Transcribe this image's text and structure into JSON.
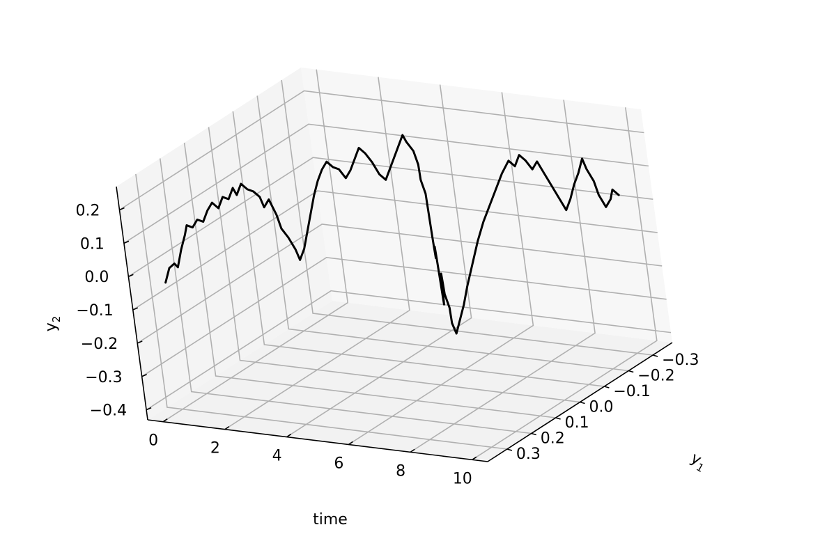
{
  "chart_data": {
    "type": "line",
    "projection": "3d",
    "xlabel": "time",
    "ylabel": "y1",
    "zlabel": "y2",
    "xlim": [
      -0.5,
      10.5
    ],
    "ylim": [
      -0.38,
      0.38
    ],
    "zlim": [
      -0.43,
      0.27
    ],
    "grid": true,
    "x_ticks": [
      "0",
      "2",
      "4",
      "6",
      "8",
      "10"
    ],
    "y_ticks": [
      "−0.3",
      "−0.2",
      "−0.1",
      "0.0",
      "0.1",
      "0.2",
      "0.3"
    ],
    "z_ticks": [
      "−0.4",
      "−0.3",
      "−0.2",
      "−0.1",
      "0.0",
      "0.1",
      "0.2"
    ],
    "x_tick_values": [
      0,
      2,
      4,
      6,
      8,
      10
    ],
    "y_tick_values": [
      -0.3,
      -0.2,
      -0.1,
      0.0,
      0.1,
      0.2,
      0.3
    ],
    "z_tick_values": [
      -0.4,
      -0.3,
      -0.2,
      -0.1,
      0.0,
      0.1,
      0.2
    ],
    "series": [
      {
        "color": "#000000",
        "points": [
          [
            0.0,
            0.3,
            -0.05
          ],
          [
            0.1,
            0.29,
            -0.01
          ],
          [
            0.2,
            0.28,
            0.0
          ],
          [
            0.3,
            0.28,
            -0.01
          ],
          [
            0.4,
            0.27,
            0.04
          ],
          [
            0.5,
            0.26,
            0.08
          ],
          [
            0.6,
            0.26,
            0.11
          ],
          [
            0.7,
            0.25,
            0.1
          ],
          [
            0.8,
            0.24,
            0.12
          ],
          [
            0.9,
            0.23,
            0.11
          ],
          [
            1.0,
            0.22,
            0.14
          ],
          [
            1.1,
            0.21,
            0.16
          ],
          [
            1.2,
            0.2,
            0.14
          ],
          [
            1.3,
            0.19,
            0.17
          ],
          [
            1.4,
            0.18,
            0.16
          ],
          [
            1.5,
            0.17,
            0.19
          ],
          [
            1.6,
            0.17,
            0.17
          ],
          [
            1.7,
            0.16,
            0.2
          ],
          [
            1.8,
            0.15,
            0.18
          ],
          [
            1.9,
            0.14,
            0.17
          ],
          [
            2.0,
            0.13,
            0.15
          ],
          [
            2.1,
            0.13,
            0.12
          ],
          [
            2.2,
            0.12,
            0.14
          ],
          [
            2.3,
            0.11,
            0.09
          ],
          [
            2.4,
            0.11,
            0.05
          ],
          [
            2.5,
            0.1,
            0.02
          ],
          [
            2.6,
            0.09,
            -0.02
          ],
          [
            2.7,
            0.09,
            -0.05
          ],
          [
            2.8,
            0.08,
            -0.02
          ],
          [
            2.9,
            0.07,
            0.03
          ],
          [
            3.0,
            0.06,
            0.08
          ],
          [
            3.1,
            0.05,
            0.13
          ],
          [
            3.2,
            0.04,
            0.17
          ],
          [
            3.3,
            0.03,
            0.2
          ],
          [
            3.4,
            0.02,
            0.22
          ],
          [
            3.5,
            0.01,
            0.2
          ],
          [
            3.6,
            0.0,
            0.19
          ],
          [
            3.7,
            -0.01,
            0.16
          ],
          [
            3.8,
            -0.02,
            0.18
          ],
          [
            3.9,
            -0.03,
            0.21
          ],
          [
            4.0,
            -0.04,
            0.24
          ],
          [
            4.1,
            -0.05,
            0.22
          ],
          [
            4.2,
            -0.06,
            0.19
          ],
          [
            4.3,
            -0.07,
            0.15
          ],
          [
            4.4,
            -0.08,
            0.13
          ],
          [
            4.5,
            -0.09,
            0.16
          ],
          [
            4.6,
            -0.1,
            0.19
          ],
          [
            4.7,
            -0.11,
            0.22
          ],
          [
            4.8,
            -0.12,
            0.25
          ],
          [
            4.9,
            -0.12,
            0.23
          ],
          [
            5.0,
            -0.13,
            0.2
          ],
          [
            5.1,
            -0.13,
            0.16
          ],
          [
            5.2,
            -0.12,
            0.12
          ],
          [
            5.3,
            -0.12,
            0.08
          ],
          [
            5.4,
            -0.11,
            0.03
          ],
          [
            5.5,
            -0.1,
            -0.02
          ],
          [
            5.6,
            -0.09,
            -0.06
          ],
          [
            5.7,
            -0.08,
            -0.09
          ],
          [
            5.8,
            -0.07,
            -0.05
          ],
          [
            5.9,
            -0.06,
            -0.08
          ],
          [
            6.0,
            -0.05,
            -0.12
          ],
          [
            6.1,
            -0.04,
            -0.16
          ],
          [
            6.2,
            -0.03,
            -0.2
          ],
          [
            6.3,
            -0.02,
            -0.17
          ],
          [
            6.4,
            -0.01,
            -0.13
          ],
          [
            6.5,
            0.0,
            -0.09
          ],
          [
            6.6,
            0.01,
            -0.11
          ],
          [
            6.7,
            0.02,
            -0.14
          ],
          [
            6.8,
            0.02,
            -0.18
          ],
          [
            6.9,
            0.03,
            -0.22
          ],
          [
            7.0,
            0.03,
            -0.25
          ],
          [
            7.1,
            0.02,
            -0.21
          ],
          [
            7.2,
            0.01,
            -0.17
          ],
          [
            7.3,
            0.0,
            -0.12
          ],
          [
            7.4,
            -0.02,
            -0.06
          ],
          [
            7.5,
            -0.04,
            0.0
          ],
          [
            7.6,
            -0.06,
            0.05
          ],
          [
            7.7,
            -0.08,
            0.09
          ],
          [
            7.8,
            -0.1,
            0.13
          ],
          [
            7.9,
            -0.12,
            0.17
          ],
          [
            8.0,
            -0.14,
            0.2
          ],
          [
            8.1,
            -0.15,
            0.18
          ],
          [
            8.2,
            -0.16,
            0.21
          ],
          [
            8.3,
            -0.17,
            0.19
          ],
          [
            8.4,
            -0.18,
            0.16
          ],
          [
            8.5,
            -0.19,
            0.18
          ],
          [
            8.6,
            -0.2,
            0.14
          ],
          [
            8.7,
            -0.21,
            0.1
          ],
          [
            8.8,
            -0.22,
            0.06
          ],
          [
            8.9,
            -0.23,
            0.02
          ],
          [
            9.0,
            -0.24,
            0.05
          ],
          [
            9.1,
            -0.25,
            0.09
          ],
          [
            9.2,
            -0.26,
            0.12
          ],
          [
            9.3,
            -0.27,
            0.16
          ],
          [
            9.4,
            -0.27,
            0.13
          ],
          [
            9.5,
            -0.28,
            0.09
          ],
          [
            9.6,
            -0.28,
            0.05
          ],
          [
            9.7,
            -0.29,
            0.01
          ],
          [
            9.8,
            -0.3,
            0.03
          ],
          [
            9.9,
            -0.3,
            0.06
          ],
          [
            10.0,
            -0.31,
            0.04
          ]
        ]
      }
    ]
  }
}
